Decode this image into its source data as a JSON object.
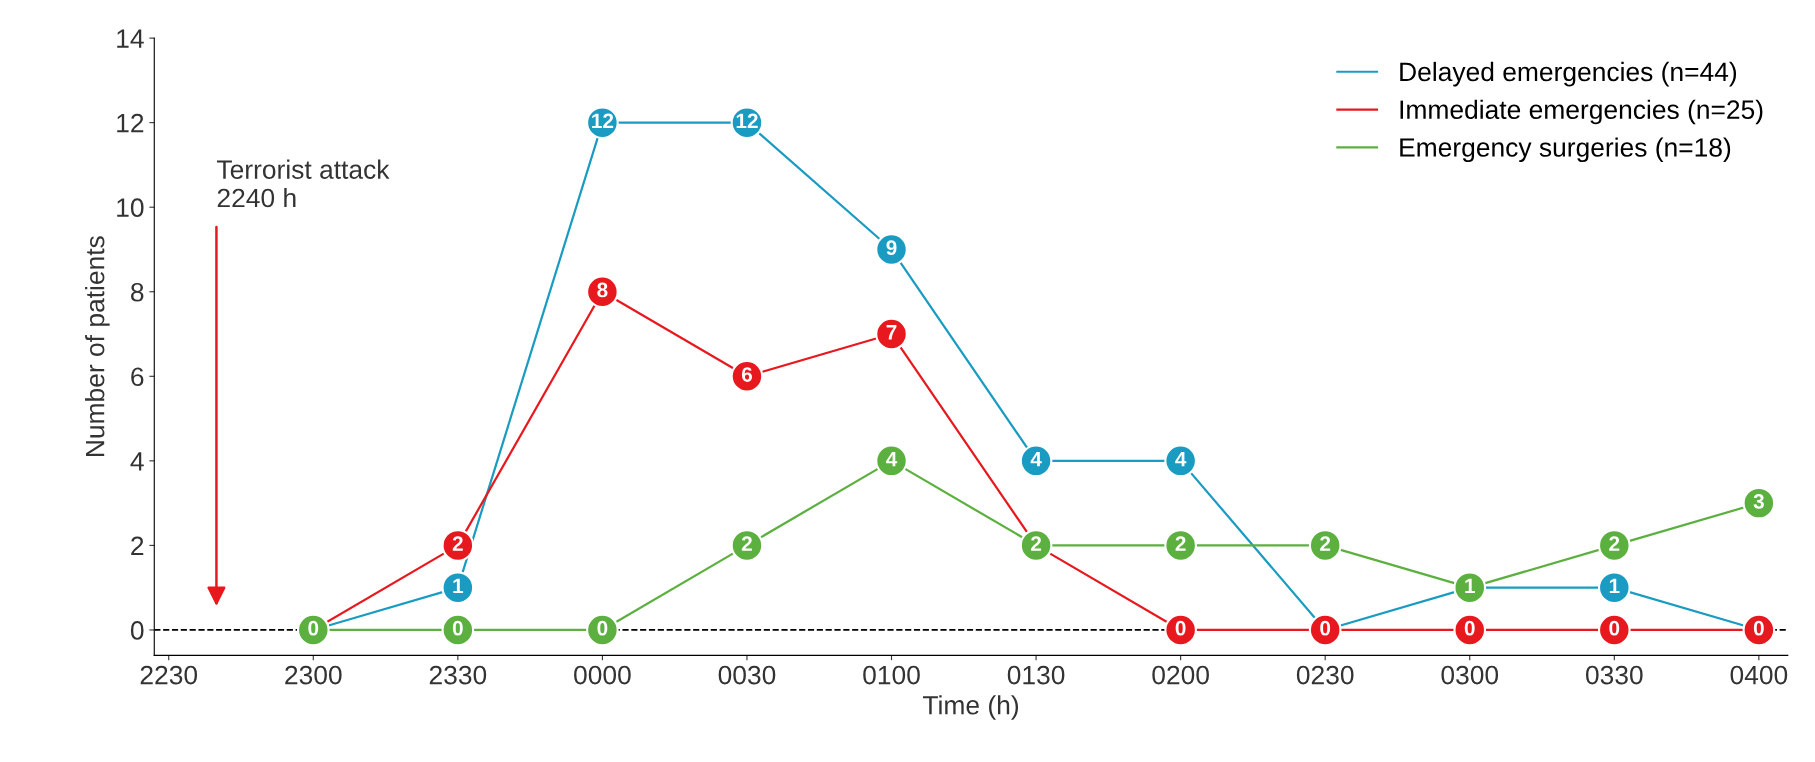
{
  "chart_data": {
    "type": "line",
    "xlabel": "Time (h)",
    "ylabel": "Number of patients",
    "categories": [
      "2230",
      "2300",
      "2330",
      "0000",
      "0030",
      "0100",
      "0130",
      "0200",
      "0230",
      "0300",
      "0330",
      "0400"
    ],
    "series": [
      {
        "name": "Delayed emergencies (n=44)",
        "color": "#1a9bc2",
        "values": [
          null,
          0,
          1,
          12,
          12,
          9,
          4,
          4,
          0,
          1,
          1,
          0
        ],
        "value_labels": [
          null,
          null,
          "1",
          "12",
          "12",
          "9",
          "4",
          "4",
          null,
          null,
          "1",
          null
        ]
      },
      {
        "name": "Immediate emergencies (n=25)",
        "color": "#e8191e",
        "values": [
          null,
          0,
          2,
          8,
          6,
          7,
          2,
          0,
          0,
          0,
          0,
          0
        ],
        "value_labels": [
          null,
          null,
          "2",
          "8",
          "6",
          "7",
          null,
          "0",
          "0",
          "0",
          "0",
          "0"
        ]
      },
      {
        "name": "Emergency surgeries (n=18)",
        "color": "#5cb040",
        "values": [
          null,
          0,
          0,
          0,
          2,
          4,
          2,
          2,
          2,
          1,
          2,
          3
        ],
        "value_labels": [
          null,
          "0",
          "0",
          "0",
          "2",
          "4",
          "2",
          "2",
          "2",
          "1",
          "2",
          "3"
        ]
      }
    ],
    "ylim": [
      -0.6,
      14
    ],
    "yticks": [
      0,
      2,
      4,
      6,
      8,
      10,
      12,
      14
    ],
    "ref_lines": [
      {
        "axis": "y",
        "value": 0,
        "label": null,
        "color": "#000000",
        "line_style": "dashed"
      }
    ],
    "annotations": [
      "Terrorist attack\n2240 h"
    ],
    "marker": "circle",
    "line_style": "solid",
    "grid": false,
    "legend": "top right"
  }
}
